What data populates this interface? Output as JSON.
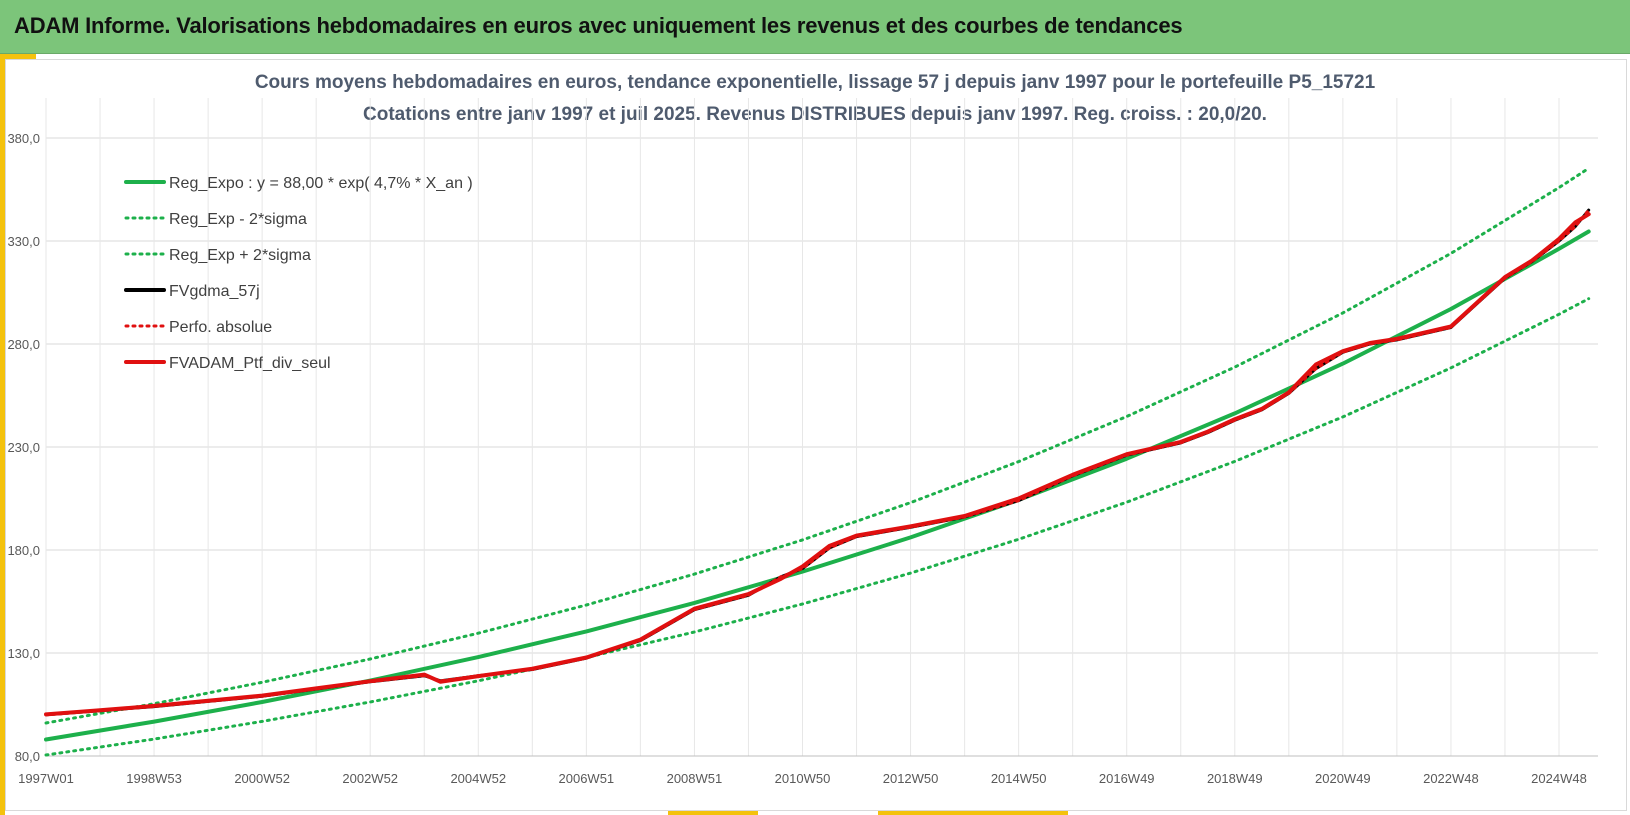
{
  "header": {
    "title": "ADAM Informe. Valorisations hebdomadaires en euros avec uniquement les revenus et des courbes de tendances"
  },
  "colors": {
    "header_bg": "#7cc57a",
    "accent": "#f4c20d",
    "reg": "#1db04b",
    "fvgdma": "#000000",
    "fvadam": "#e01010"
  },
  "chart_data": {
    "type": "line",
    "title": "Cours moyens hebdomadaires  en euros, tendance exponentielle, lissage 57 j depuis janv 1997 pour le portefeuille P5_15721",
    "subtitle": "Cotations entre janv 1997 et juil 2025. Revenus DISTRIBUES depuis janv 1997. Reg. croiss. : 20,0/20.",
    "xlabel": "",
    "ylabel": "",
    "ylim": [
      80,
      400
    ],
    "yticks": [
      "80,0",
      "130,0",
      "180,0",
      "230,0",
      "280,0",
      "330,0",
      "380,0"
    ],
    "yticks_values": [
      80,
      130,
      180,
      230,
      280,
      330,
      380
    ],
    "xlim": [
      1997.0,
      2025.55
    ],
    "xticks": [
      "1997W01",
      "1998W53",
      "2000W52",
      "2002W52",
      "2004W52",
      "2006W51",
      "2008W51",
      "2010W50",
      "2012W50",
      "2014W50",
      "2016W49",
      "2018W49",
      "2020W49",
      "2022W48",
      "2024W48"
    ],
    "xticks_values": [
      1997.0,
      1999.0,
      2001.0,
      2003.0,
      2005.0,
      2007.0,
      2009.0,
      2011.0,
      2013.0,
      2015.0,
      2017.0,
      2019.0,
      2021.0,
      2023.0,
      2025.0
    ],
    "grid": true,
    "legend_position": "top-left",
    "series": [
      {
        "name": "Reg_Expo : y = 88,00 * exp( 4,7% *  X_an )",
        "color": "#1db04b",
        "style": "solid",
        "x": [
          1997.0,
          1999.0,
          2001.0,
          2003.0,
          2005.0,
          2007.0,
          2009.0,
          2011.0,
          2013.0,
          2015.0,
          2017.0,
          2019.0,
          2021.0,
          2023.0,
          2025.0,
          2025.55
        ],
        "y": [
          88.0,
          96.7,
          106.2,
          116.6,
          128.0,
          140.5,
          154.3,
          169.5,
          186.1,
          204.3,
          224.3,
          246.3,
          270.5,
          297.0,
          326.2,
          334.6
        ]
      },
      {
        "name": "Reg_Exp - 2*sigma",
        "color": "#1db04b",
        "style": "dotted",
        "x": [
          1997.0,
          1999.0,
          2001.0,
          2003.0,
          2005.0,
          2007.0,
          2009.0,
          2011.0,
          2013.0,
          2015.0,
          2017.0,
          2019.0,
          2021.0,
          2023.0,
          2025.0,
          2025.55
        ],
        "y": [
          80.5,
          88.2,
          96.8,
          106.2,
          116.5,
          127.8,
          140.2,
          153.8,
          168.8,
          185.2,
          203.2,
          223.0,
          244.6,
          268.4,
          294.4,
          302.0
        ]
      },
      {
        "name": "Reg_Exp + 2*sigma",
        "color": "#1db04b",
        "style": "dotted",
        "x": [
          1997.0,
          1999.0,
          2001.0,
          2003.0,
          2005.0,
          2007.0,
          2009.0,
          2011.0,
          2013.0,
          2015.0,
          2017.0,
          2019.0,
          2021.0,
          2023.0,
          2025.0,
          2025.55
        ],
        "y": [
          96.0,
          105.4,
          115.8,
          127.1,
          139.6,
          153.3,
          168.3,
          184.9,
          203.0,
          222.9,
          244.8,
          268.8,
          295.1,
          324.0,
          355.9,
          365.3
        ]
      },
      {
        "name": "FVgdma_57j",
        "color": "#000000",
        "style": "solid",
        "x": [
          1997.0,
          1998.0,
          1999.0,
          2000.0,
          2001.0,
          2002.0,
          2003.0,
          2004.0,
          2004.3,
          2005.0,
          2006.0,
          2007.0,
          2008.0,
          2009.0,
          2010.0,
          2010.6,
          2011.0,
          2011.5,
          2012.0,
          2013.0,
          2014.0,
          2015.0,
          2016.0,
          2017.0,
          2018.0,
          2018.5,
          2019.0,
          2019.5,
          2020.0,
          2020.5,
          2021.0,
          2021.5,
          2022.0,
          2022.5,
          2023.0,
          2023.5,
          2024.0,
          2024.5,
          2025.0,
          2025.3,
          2025.55
        ],
        "y": [
          100.0,
          102.0,
          104.0,
          106.5,
          109.0,
          112.5,
          116.0,
          119.0,
          116.5,
          119.0,
          122.0,
          127.5,
          136.0,
          151.0,
          158.0,
          167.0,
          171.0,
          181.0,
          186.5,
          191.0,
          196.0,
          204.0,
          216.0,
          226.0,
          232.0,
          237.0,
          243.0,
          248.0,
          256.0,
          268.0,
          276.0,
          280.0,
          282.0,
          285.0,
          288.0,
          300.0,
          312.0,
          320.0,
          330.0,
          337.0,
          345.0
        ]
      },
      {
        "name": "Perfo. absolue",
        "color": "#e01010",
        "style": "dotted",
        "x": [
          1997.0,
          1998.0,
          1999.0,
          2000.0,
          2001.0,
          2002.0,
          2003.0,
          2004.0,
          2004.3,
          2005.0,
          2006.0,
          2007.0,
          2008.0,
          2009.0,
          2010.0,
          2010.6,
          2011.0,
          2011.5,
          2012.0,
          2013.0,
          2014.0,
          2015.0,
          2016.0,
          2017.0,
          2018.0,
          2018.5,
          2019.0,
          2019.5,
          2020.0,
          2020.5,
          2021.0,
          2021.5,
          2022.0,
          2022.5,
          2023.0,
          2023.5,
          2024.0,
          2024.5,
          2025.0,
          2025.3,
          2025.55
        ],
        "y": [
          100.0,
          102.0,
          104.0,
          106.5,
          109.0,
          112.5,
          116.0,
          119.0,
          116.5,
          119.0,
          122.0,
          127.5,
          136.0,
          151.0,
          158.0,
          167.0,
          171.0,
          181.0,
          186.5,
          191.0,
          196.0,
          204.0,
          216.0,
          226.0,
          232.0,
          237.0,
          243.0,
          248.0,
          256.0,
          268.0,
          276.0,
          280.0,
          282.0,
          285.0,
          288.0,
          300.0,
          312.0,
          320.0,
          330.0,
          337.0,
          345.0
        ]
      },
      {
        "name": "FVADAM_Ptf_div_seul",
        "color": "#e01010",
        "style": "solid",
        "x": [
          1997.0,
          1998.0,
          1999.0,
          2000.0,
          2001.0,
          2002.0,
          2003.0,
          2004.0,
          2004.3,
          2005.0,
          2006.0,
          2007.0,
          2008.0,
          2009.0,
          2010.0,
          2010.6,
          2011.0,
          2011.5,
          2012.0,
          2013.0,
          2014.0,
          2015.0,
          2016.0,
          2017.0,
          2018.0,
          2018.5,
          2019.0,
          2019.5,
          2020.0,
          2020.5,
          2021.0,
          2021.5,
          2022.0,
          2022.5,
          2023.0,
          2023.5,
          2024.0,
          2024.5,
          2025.0,
          2025.3,
          2025.55
        ],
        "y": [
          100.2,
          102.2,
          104.3,
          106.8,
          109.3,
          112.8,
          116.3,
          119.5,
          116.0,
          118.8,
          122.4,
          127.8,
          136.5,
          151.5,
          158.6,
          166.0,
          172.0,
          182.0,
          187.0,
          191.5,
          196.5,
          205.0,
          216.5,
          226.5,
          232.5,
          237.5,
          243.5,
          248.5,
          256.5,
          270.0,
          276.5,
          280.5,
          282.5,
          285.5,
          288.5,
          300.5,
          312.5,
          320.5,
          331.0,
          339.0,
          343.0
        ]
      }
    ]
  }
}
